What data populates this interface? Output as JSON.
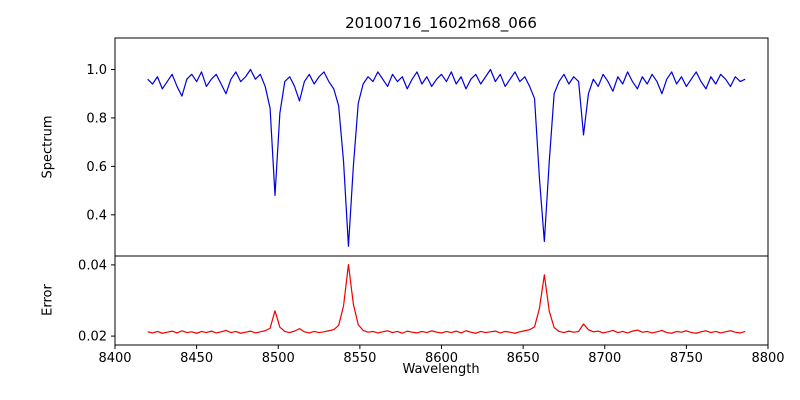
{
  "figure": {
    "title": "20100716_1602m68_066",
    "xlabel": "Wavelength",
    "ylabel_top": "Spectrum",
    "ylabel_bottom": "Error",
    "background": "#ffffff",
    "frame_color": "#000000"
  },
  "chart_data": {
    "type": "line",
    "title": "20100716_1602m68_066",
    "xlabel": "Wavelength",
    "grid": false,
    "legend": "none",
    "xlim": [
      8400,
      8800
    ],
    "xticks": [
      8400,
      8450,
      8500,
      8550,
      8600,
      8650,
      8700,
      8750,
      8800
    ],
    "xtick_labels": [
      "8400",
      "8450",
      "8500",
      "8550",
      "8600",
      "8650",
      "8700",
      "8750",
      "8800"
    ],
    "x": [
      8420,
      8423,
      8426,
      8429,
      8432,
      8435,
      8438,
      8441,
      8444,
      8447,
      8450,
      8453,
      8456,
      8459,
      8462,
      8465,
      8468,
      8471,
      8474,
      8477,
      8480,
      8483,
      8486,
      8489,
      8492,
      8495,
      8498,
      8501,
      8504,
      8507,
      8510,
      8513,
      8516,
      8519,
      8522,
      8525,
      8528,
      8531,
      8534,
      8537,
      8540,
      8543,
      8546,
      8549,
      8552,
      8555,
      8558,
      8561,
      8564,
      8567,
      8570,
      8573,
      8576,
      8579,
      8582,
      8585,
      8588,
      8591,
      8594,
      8597,
      8600,
      8603,
      8606,
      8609,
      8612,
      8615,
      8618,
      8621,
      8624,
      8627,
      8630,
      8633,
      8636,
      8639,
      8642,
      8645,
      8648,
      8651,
      8654,
      8657,
      8660,
      8663,
      8666,
      8669,
      8672,
      8675,
      8678,
      8681,
      8684,
      8687,
      8690,
      8693,
      8696,
      8699,
      8702,
      8705,
      8708,
      8711,
      8714,
      8717,
      8720,
      8723,
      8726,
      8729,
      8732,
      8735,
      8738,
      8741,
      8744,
      8747,
      8750,
      8753,
      8756,
      8759,
      8762,
      8765,
      8768,
      8771,
      8774,
      8777,
      8780,
      8783,
      8786
    ],
    "panels": [
      {
        "name": "spectrum",
        "ylabel": "Spectrum",
        "color": "#0000dd",
        "ylim": [
          0.23,
          1.13
        ],
        "yticks": [
          0.4,
          0.6,
          0.8,
          1.0
        ],
        "ytick_labels": [
          "0.4",
          "0.6",
          "0.8",
          "1.0"
        ],
        "absorption_line_centers": [
          8498,
          8542,
          8662,
          8688
        ],
        "values": [
          0.96,
          0.94,
          0.97,
          0.92,
          0.95,
          0.98,
          0.93,
          0.89,
          0.96,
          0.98,
          0.95,
          0.99,
          0.93,
          0.96,
          0.98,
          0.94,
          0.9,
          0.96,
          0.99,
          0.95,
          0.97,
          1.0,
          0.96,
          0.98,
          0.93,
          0.84,
          0.48,
          0.82,
          0.95,
          0.97,
          0.93,
          0.87,
          0.95,
          0.98,
          0.94,
          0.97,
          0.99,
          0.95,
          0.92,
          0.85,
          0.62,
          0.27,
          0.6,
          0.86,
          0.94,
          0.97,
          0.95,
          0.99,
          0.96,
          0.93,
          0.98,
          0.95,
          0.97,
          0.92,
          0.96,
          0.99,
          0.94,
          0.97,
          0.93,
          0.96,
          0.98,
          0.95,
          0.99,
          0.94,
          0.97,
          0.92,
          0.96,
          0.98,
          0.94,
          0.97,
          1.0,
          0.95,
          0.98,
          0.93,
          0.96,
          0.99,
          0.95,
          0.97,
          0.93,
          0.88,
          0.55,
          0.29,
          0.62,
          0.9,
          0.95,
          0.98,
          0.94,
          0.97,
          0.95,
          0.73,
          0.9,
          0.96,
          0.93,
          0.98,
          0.95,
          0.91,
          0.97,
          0.94,
          0.99,
          0.95,
          0.92,
          0.97,
          0.94,
          0.98,
          0.95,
          0.9,
          0.96,
          0.99,
          0.94,
          0.97,
          0.93,
          0.96,
          0.99,
          0.95,
          0.92,
          0.97,
          0.94,
          0.98,
          0.96,
          0.93,
          0.97,
          0.95,
          0.96
        ]
      },
      {
        "name": "error",
        "ylabel": "Error",
        "color": "#ee0000",
        "ylim": [
          0.0175,
          0.0425
        ],
        "yticks": [
          0.02,
          0.04
        ],
        "ytick_labels": [
          "0.02",
          "0.04"
        ],
        "values": [
          0.0212,
          0.0209,
          0.0213,
          0.0208,
          0.0211,
          0.0214,
          0.0209,
          0.0215,
          0.021,
          0.0212,
          0.0208,
          0.0213,
          0.021,
          0.0214,
          0.0209,
          0.0212,
          0.0216,
          0.021,
          0.0213,
          0.0208,
          0.0211,
          0.0214,
          0.0209,
          0.0212,
          0.0215,
          0.0222,
          0.0271,
          0.0225,
          0.0213,
          0.021,
          0.0214,
          0.0221,
          0.0212,
          0.0209,
          0.0213,
          0.021,
          0.0212,
          0.0215,
          0.0218,
          0.023,
          0.0285,
          0.0401,
          0.029,
          0.0232,
          0.0216,
          0.0211,
          0.0213,
          0.0209,
          0.0212,
          0.0215,
          0.021,
          0.0213,
          0.0208,
          0.0214,
          0.0211,
          0.0209,
          0.0213,
          0.021,
          0.0215,
          0.0211,
          0.0209,
          0.0213,
          0.021,
          0.0214,
          0.0209,
          0.0215,
          0.0211,
          0.0208,
          0.0213,
          0.021,
          0.0212,
          0.0214,
          0.0209,
          0.0213,
          0.0211,
          0.0208,
          0.0212,
          0.0215,
          0.0218,
          0.0226,
          0.0278,
          0.0372,
          0.027,
          0.0224,
          0.0213,
          0.021,
          0.0214,
          0.0211,
          0.0213,
          0.0234,
          0.0218,
          0.0212,
          0.0214,
          0.0209,
          0.0212,
          0.0216,
          0.021,
          0.0213,
          0.0209,
          0.0214,
          0.0217,
          0.0211,
          0.0213,
          0.0209,
          0.0212,
          0.0216,
          0.021,
          0.0208,
          0.0213,
          0.0211,
          0.0215,
          0.021,
          0.0208,
          0.0212,
          0.0215,
          0.021,
          0.0213,
          0.0209,
          0.0212,
          0.0215,
          0.0211,
          0.0209,
          0.0213
        ]
      }
    ]
  }
}
